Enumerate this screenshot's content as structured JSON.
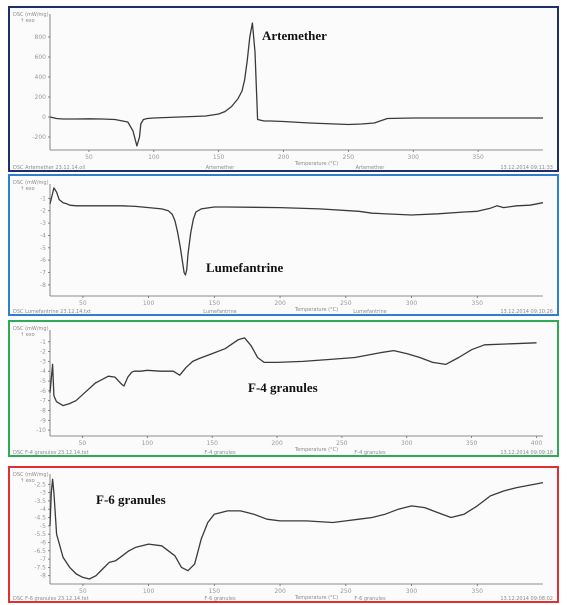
{
  "colors": {
    "panel_borders": [
      "#1f2f6e",
      "#2f7fd0",
      "#2faa55",
      "#e03030"
    ],
    "trace": "#3a3a3a"
  },
  "chart_data": [
    {
      "type": "line",
      "title": "Artemether",
      "y_header": [
        "DSC (mW/mg)",
        "↑ exo"
      ],
      "xlabel": "Temperature (°C)",
      "x_ticks": [
        50,
        100,
        150,
        200,
        250,
        300,
        350
      ],
      "y_ticks": [
        800,
        600,
        400,
        200,
        0,
        -200
      ],
      "footer": [
        "DSC Artemether 23.12.14.oil",
        "Artemether",
        "Artemether",
        "13.12.2014 09:11:33"
      ],
      "xlim": [
        20,
        400
      ],
      "ylim": [
        -330,
        1010
      ],
      "series": [
        {
          "x": [
            20,
            25,
            30,
            40,
            50,
            60,
            70,
            80,
            84,
            87,
            89,
            90,
            92,
            95,
            100,
            110,
            120,
            140,
            150,
            155,
            160,
            165,
            168,
            170,
            172,
            174,
            176,
            178,
            180,
            185,
            190,
            200,
            220,
            240,
            250,
            260,
            270,
            280,
            300,
            320,
            340,
            360,
            380,
            390,
            395,
            400
          ],
          "y": [
            0,
            -15,
            -20,
            -20,
            -18,
            -20,
            -25,
            -50,
            -140,
            -290,
            -200,
            -70,
            -25,
            -15,
            -10,
            -5,
            0,
            10,
            30,
            55,
            105,
            185,
            260,
            370,
            560,
            800,
            940,
            650,
            -25,
            -40,
            -40,
            -45,
            -60,
            -70,
            -75,
            -70,
            -60,
            -15,
            -10,
            -10,
            -10,
            -10,
            -10,
            -10,
            -10,
            -10
          ]
        }
      ]
    },
    {
      "type": "line",
      "title": "Lumefantrine",
      "y_header": [
        "DSC (mW/mg)",
        "↑ exo"
      ],
      "xlabel": "Temperature (°C)",
      "x_ticks": [
        50,
        100,
        150,
        200,
        250,
        300,
        350
      ],
      "y_ticks": [
        -1,
        -2,
        -3,
        -4,
        -5,
        -6,
        -7,
        -8
      ],
      "footer": [
        "DSC Lumefantrine 23.12.14.txt",
        "Lumefantrine",
        "Lumefantrine",
        "13.12.2014 09:10:26"
      ],
      "xlim": [
        25,
        400
      ],
      "ylim": [
        -8.9,
        0
      ],
      "series": [
        {
          "x": [
            25,
            27,
            28,
            30,
            32,
            35,
            38,
            40,
            45,
            50,
            60,
            70,
            80,
            90,
            100,
            110,
            115,
            118,
            120,
            122,
            124,
            126,
            127,
            128,
            129,
            130,
            132,
            134,
            136,
            140,
            150,
            160,
            200,
            230,
            260,
            270,
            300,
            320,
            340,
            350,
            360,
            365,
            370,
            380,
            390,
            400
          ],
          "y": [
            -1.45,
            -0.6,
            -0.15,
            -0.5,
            -1.1,
            -1.35,
            -1.45,
            -1.55,
            -1.6,
            -1.6,
            -1.6,
            -1.6,
            -1.6,
            -1.65,
            -1.75,
            -1.85,
            -2.0,
            -2.3,
            -2.8,
            -3.7,
            -4.9,
            -6.3,
            -7.0,
            -7.2,
            -6.8,
            -5.5,
            -3.8,
            -2.7,
            -2.1,
            -1.85,
            -1.7,
            -1.7,
            -1.75,
            -1.85,
            -2.05,
            -2.2,
            -2.35,
            -2.25,
            -2.1,
            -2.05,
            -1.8,
            -1.6,
            -1.75,
            -1.6,
            -1.55,
            -1.35
          ]
        }
      ]
    },
    {
      "type": "line",
      "title": "F-4 granules",
      "y_header": [
        "DSC (mW/mg)",
        "↑ exo"
      ],
      "xlabel": "Temperature (°C)",
      "x_ticks": [
        50,
        100,
        150,
        200,
        250,
        300,
        350,
        400
      ],
      "y_ticks": [
        -1,
        -2,
        -3,
        -4,
        -5,
        -6,
        -7,
        -8,
        -9,
        -10
      ],
      "footer": [
        "DSC F-4 granules 23.12.14.txt",
        "F-4 granules",
        "F-4 granules",
        "13.12.2014 09:09:18"
      ],
      "xlim": [
        25,
        405
      ],
      "ylim": [
        -10.6,
        0
      ],
      "series": [
        {
          "x": [
            25,
            27,
            28,
            30,
            35,
            40,
            45,
            50,
            60,
            70,
            75,
            80,
            82,
            85,
            88,
            90,
            95,
            100,
            110,
            120,
            125,
            130,
            135,
            140,
            150,
            160,
            170,
            175,
            180,
            185,
            190,
            200,
            220,
            240,
            260,
            280,
            290,
            300,
            310,
            320,
            330,
            340,
            350,
            360,
            380,
            400
          ],
          "y": [
            -6.2,
            -3.3,
            -6.5,
            -7.1,
            -7.5,
            -7.3,
            -7.0,
            -6.4,
            -5.2,
            -4.5,
            -4.6,
            -5.3,
            -5.5,
            -4.6,
            -4.1,
            -4.0,
            -4.0,
            -3.9,
            -4.0,
            -4.0,
            -4.4,
            -3.6,
            -3.0,
            -2.7,
            -2.2,
            -1.7,
            -0.8,
            -0.6,
            -1.4,
            -2.6,
            -3.1,
            -3.1,
            -3.0,
            -2.8,
            -2.6,
            -2.1,
            -1.9,
            -2.2,
            -2.6,
            -3.1,
            -3.3,
            -2.6,
            -1.8,
            -1.3,
            -1.2,
            -1.1
          ]
        }
      ]
    },
    {
      "type": "line",
      "title": "F-6 granules",
      "y_header": [
        "DSC (mW/mg)",
        "↑ exo"
      ],
      "xlabel": "Temperature (°C)",
      "x_ticks": [
        50,
        100,
        150,
        200,
        250,
        300,
        350
      ],
      "y_ticks": [
        -2.5,
        -3,
        -3.5,
        -4,
        -4.5,
        -5,
        -5.5,
        -6,
        -6.5,
        -7,
        -7.5,
        -8
      ],
      "footer": [
        "DSC F-6 granules 23.12.14.txt",
        "F-6 granules",
        "F-6 granules",
        "13.12.2014 09:08:02"
      ],
      "xlim": [
        25,
        400
      ],
      "ylim": [
        -8.5,
        -2.0
      ],
      "series": [
        {
          "x": [
            25,
            26,
            27,
            28,
            30,
            35,
            40,
            45,
            50,
            55,
            60,
            65,
            70,
            75,
            80,
            85,
            90,
            95,
            100,
            110,
            120,
            125,
            130,
            135,
            138,
            140,
            145,
            150,
            160,
            170,
            180,
            190,
            200,
            220,
            240,
            250,
            260,
            270,
            280,
            290,
            300,
            310,
            320,
            330,
            340,
            350,
            360,
            370,
            380,
            400
          ],
          "y": [
            -5.0,
            -3.0,
            -2.2,
            -3.0,
            -5.5,
            -6.9,
            -7.5,
            -7.9,
            -8.1,
            -8.2,
            -8.0,
            -7.6,
            -7.2,
            -7.1,
            -6.8,
            -6.5,
            -6.3,
            -6.2,
            -6.1,
            -6.2,
            -6.8,
            -7.5,
            -7.7,
            -7.3,
            -6.4,
            -5.8,
            -4.8,
            -4.3,
            -4.1,
            -4.1,
            -4.3,
            -4.6,
            -4.7,
            -4.7,
            -4.8,
            -4.7,
            -4.6,
            -4.5,
            -4.3,
            -4.0,
            -3.8,
            -3.9,
            -4.2,
            -4.5,
            -4.3,
            -3.8,
            -3.2,
            -2.9,
            -2.7,
            -2.4
          ]
        }
      ]
    }
  ]
}
